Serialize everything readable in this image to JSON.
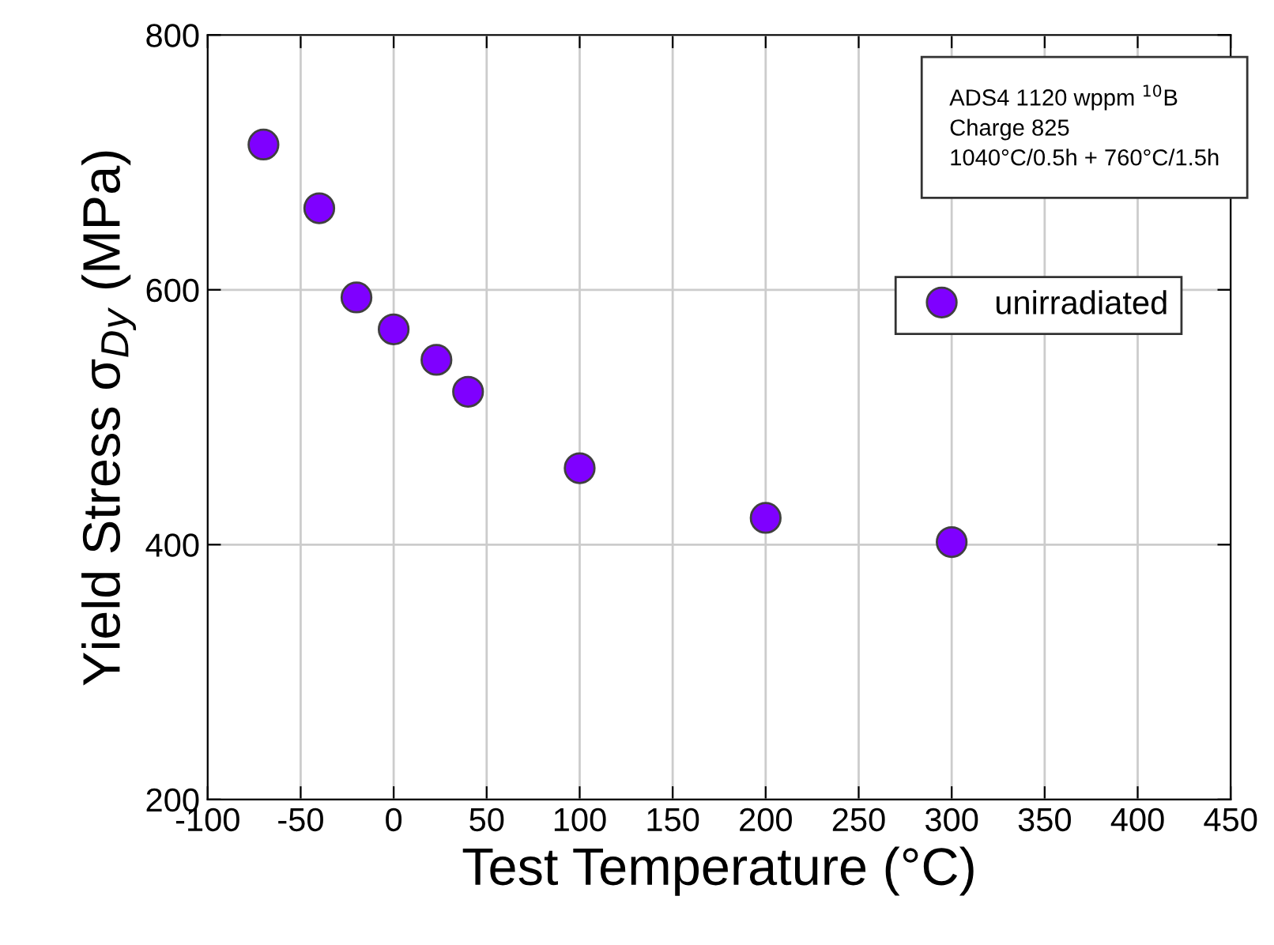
{
  "chart_data": {
    "type": "scatter",
    "xlabel": "Test Temperature (°C)",
    "ylabel": "Yield Stress σ$_{Dy}$ (MPa)",
    "x": [
      -70,
      -40,
      -20,
      0,
      23,
      40,
      100,
      200,
      300
    ],
    "series": [
      {
        "name": "unirradiated",
        "color": "#7f00ff",
        "values": [
          714,
          664,
          594,
          569,
          545,
          520,
          460,
          421,
          402
        ]
      }
    ],
    "xlim": [
      -100,
      450
    ],
    "xticks": [
      -100,
      -50,
      0,
      50,
      100,
      150,
      200,
      250,
      300,
      350,
      400,
      450
    ],
    "ylim": [
      200,
      800
    ],
    "yticks": [
      200,
      400,
      600,
      800
    ],
    "annotations": [
      "ADS4 1120 wppm $^{10}$B\nCharge 825\n1040°C/0.5h + 760°C/1.5h"
    ],
    "grid": true,
    "legend": "top right",
    "marker": "circle"
  }
}
